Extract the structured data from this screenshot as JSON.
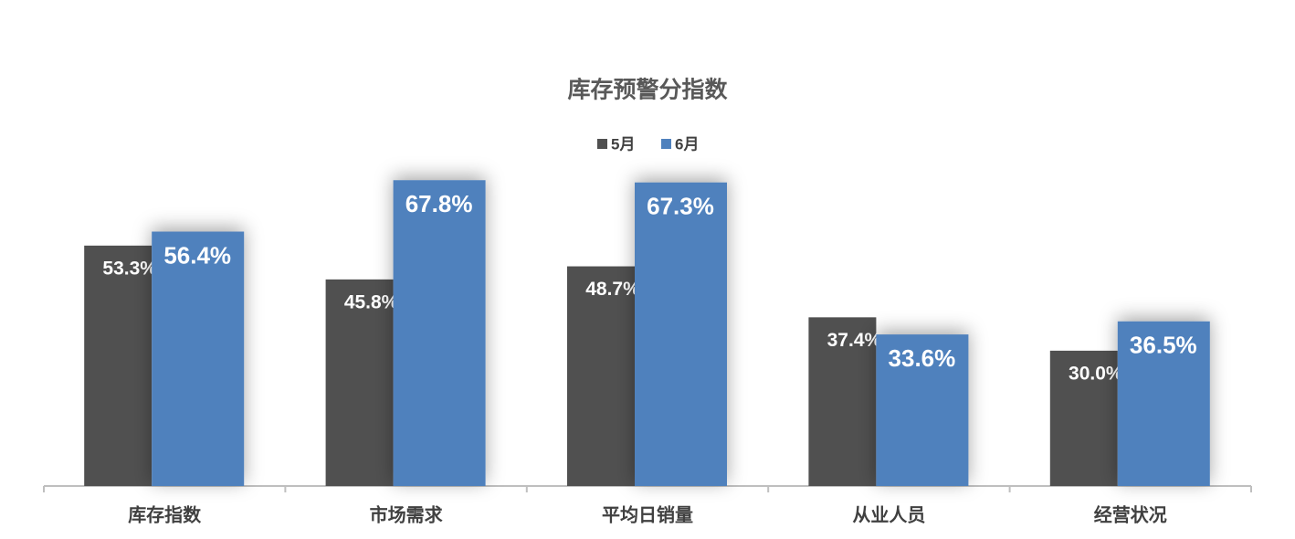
{
  "chart_data": {
    "type": "bar",
    "title": "库存预警分指数",
    "categories": [
      "库存指数",
      "市场需求",
      "平均日销量",
      "从业人员",
      "经营状况"
    ],
    "series": [
      {
        "name": "5月",
        "color": "#505050",
        "values": [
          53.3,
          45.8,
          48.7,
          37.4,
          30.0
        ],
        "value_labels": [
          "53.3%",
          "45.8%",
          "48.7%",
          "37.4%",
          "30.0%"
        ]
      },
      {
        "name": "6月",
        "color": "#4f81bd",
        "values": [
          56.4,
          67.8,
          67.3,
          33.6,
          36.5
        ],
        "value_labels": [
          "56.4%",
          "67.8%",
          "67.3%",
          "33.6%",
          "36.5%"
        ]
      }
    ],
    "ylim": [
      0,
      80
    ],
    "legend": "top"
  }
}
